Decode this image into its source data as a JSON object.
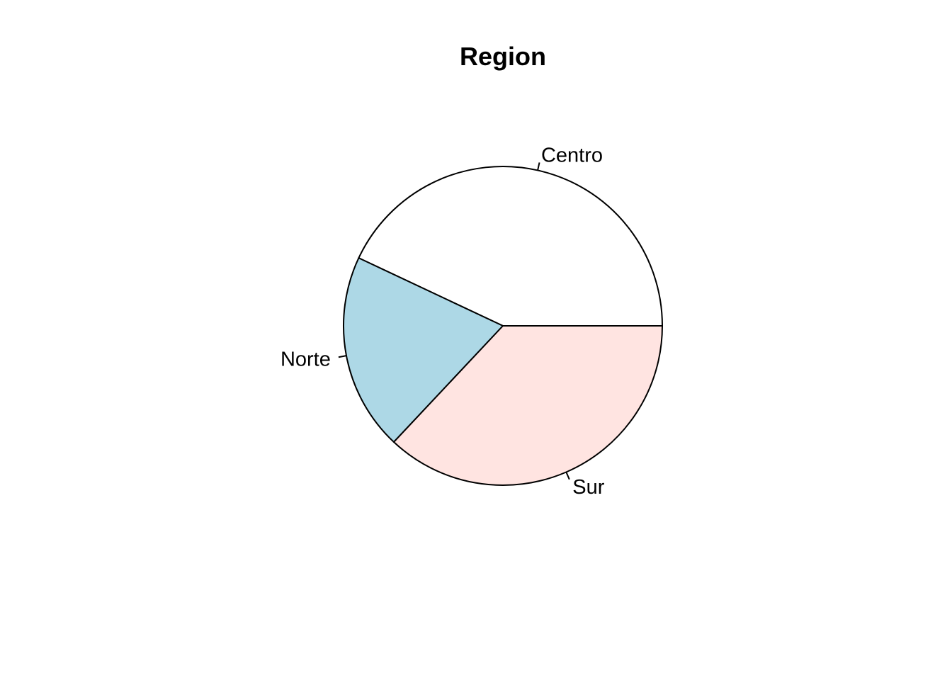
{
  "chart_data": {
    "type": "pie",
    "title": "Region",
    "categories": [
      "Centro",
      "Norte",
      "Sur"
    ],
    "values": [
      43,
      20,
      37
    ],
    "colors": [
      "#FFFFFF",
      "#ADD8E6",
      "#FFE4E1"
    ],
    "start_angle_deg": 0,
    "direction": "counterclockwise"
  }
}
